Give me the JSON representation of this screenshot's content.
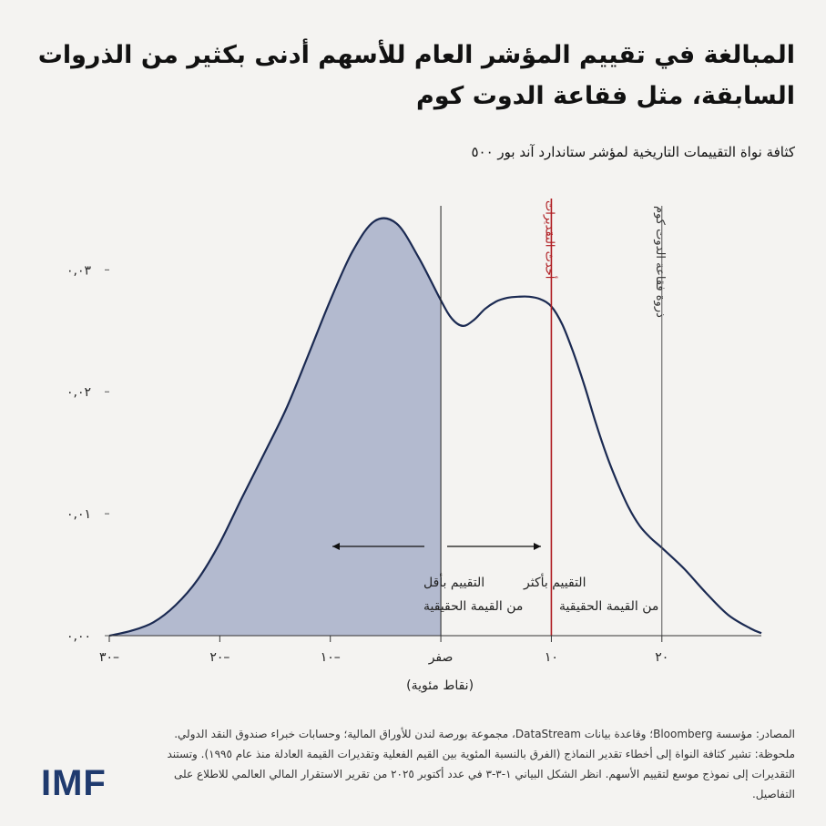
{
  "title": "المبالغة في تقييم المؤشر العام للأسهم أدنى بكثير من الذروات السابقة، مثل فقاعة الدوت كوم",
  "subtitle": "كثافة نواة التقييمات التاريخية لمؤشر ستاندارد آند بور ٥٠٠",
  "sources": "المصادر: مؤسسة Bloomberg؛ وقاعدة بيانات DataStream، مجموعة بورصة لندن للأوراق المالية؛ وحسابات خبراء صندوق النقد الدولي. ملحوظة: تشير كثافة النواة إلى أخطاء تقدير النماذج (الفرق بالنسبة المئوية بين القيم الفعلية وتقديرات القيمة العادلة منذ عام ١٩٩٥). وتستند التقديرات إلى نموذج موسع لتقييم الأسهم. انظر الشكل البياني ١-٣-٣ في عدد أكتوبر ٢٠٢٥ من تقرير الاستقرار المالي العالمي للاطلاع على التفاصيل.",
  "logo": "IMF",
  "colors": {
    "shade": "#b3bacf",
    "curve": "#1b2a52",
    "latest": "#b01e23",
    "peak": "#555555",
    "background": "#f4f3f1"
  },
  "chart_data": {
    "type": "area",
    "title": "كثافة نواة التقييمات التاريخية لمؤشر ستاندارد آند بور ٥٠٠",
    "xlabel": "(نقاط مئوية)",
    "ylabel": "",
    "xlim": [
      -30,
      29
    ],
    "ylim": [
      0,
      0.036
    ],
    "x_ticks": [
      -30,
      -20,
      -10,
      0,
      10,
      20
    ],
    "x_tick_labels": [
      "٣٠–",
      "٢٠–",
      "١٠–",
      "صفر",
      "١٠",
      "٢٠"
    ],
    "y_ticks": [
      0,
      0.01,
      0.02,
      0.03
    ],
    "y_tick_labels": [
      "٠,٠٠",
      "٠,٠١",
      "٠,٠٢",
      "٠,٠٣"
    ],
    "grid": false,
    "series": [
      {
        "name": "density",
        "x": [
          -30,
          -28,
          -26,
          -24,
          -22,
          -20,
          -18,
          -16,
          -14,
          -12,
          -10,
          -8,
          -6,
          -4,
          -2,
          0,
          1,
          2,
          3,
          4,
          5,
          6,
          7,
          8,
          9,
          10,
          11,
          12,
          13,
          14,
          15,
          16,
          17,
          18,
          19,
          20,
          22,
          24,
          26,
          28,
          29
        ],
        "y": [
          0,
          0.0004,
          0.0011,
          0.0025,
          0.0046,
          0.0076,
          0.0113,
          0.0149,
          0.0186,
          0.023,
          0.0275,
          0.0315,
          0.034,
          0.0338,
          0.031,
          0.0275,
          0.026,
          0.0254,
          0.0259,
          0.0268,
          0.0274,
          0.0277,
          0.0278,
          0.0278,
          0.0276,
          0.027,
          0.0255,
          0.0232,
          0.0205,
          0.0175,
          0.0148,
          0.0125,
          0.0105,
          0.009,
          0.008,
          0.0072,
          0.0055,
          0.0035,
          0.0017,
          0.0006,
          0.0002
        ]
      }
    ],
    "shaded_region": {
      "from": -30,
      "to": 0
    },
    "reference_lines": [
      {
        "x": 0,
        "label": ""
      },
      {
        "x": 10,
        "label": "أحدث التقديرات"
      },
      {
        "x": 20,
        "label": "ذروة فقاعة الدوت كوم"
      }
    ],
    "annotations": [
      {
        "text_line1": "التقييم بأقل",
        "text_line2": "من القيمة الحقيقية",
        "arrow": "left"
      },
      {
        "text_line1": "التقييم بأكثر",
        "text_line2": "من القيمة الحقيقية",
        "arrow": "right"
      }
    ]
  }
}
